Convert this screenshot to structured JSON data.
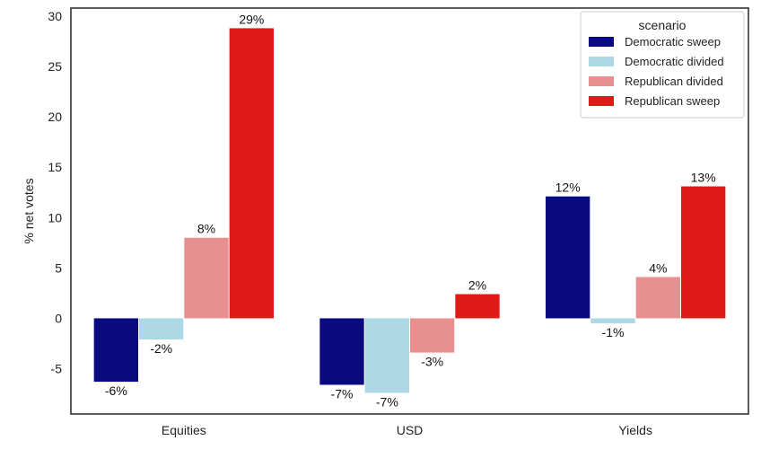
{
  "chart_data": {
    "type": "bar",
    "title": "",
    "xlabel": "",
    "ylabel": "% net votes",
    "ylim": [
      -9.5,
      30.8
    ],
    "yticks": [
      -5,
      0,
      5,
      10,
      15,
      20,
      25,
      30
    ],
    "grid": false,
    "categories": [
      "Equities",
      "USD",
      "Yields"
    ],
    "legend": {
      "title": "scenario",
      "placement": "top-right"
    },
    "series": [
      {
        "name": "Democratic sweep",
        "color": "#0a0a80",
        "values": [
          -6.3,
          -6.6,
          12.1
        ],
        "labels": [
          "-6%",
          "-7%",
          "12%"
        ]
      },
      {
        "name": "Democratic divided",
        "color": "#add8e6",
        "values": [
          -2.1,
          -7.4,
          -0.5
        ],
        "labels": [
          "-2%",
          "-7%",
          "-1%"
        ]
      },
      {
        "name": "Republican divided",
        "color": "#e88f8f",
        "values": [
          8.0,
          -3.4,
          4.1
        ],
        "labels": [
          "8%",
          "-3%",
          "4%"
        ]
      },
      {
        "name": "Republican sweep",
        "color": "#e01919",
        "values": [
          28.8,
          2.4,
          13.1
        ],
        "labels": [
          "29%",
          "2%",
          "13%"
        ]
      }
    ]
  }
}
